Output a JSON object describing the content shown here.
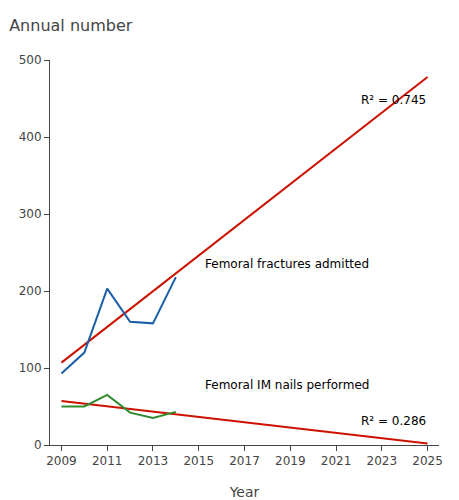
{
  "chart_data": {
    "type": "line",
    "title": "Annual number",
    "x_label": "Year",
    "xlim": [
      2008.5,
      2025.5
    ],
    "ylim": [
      0,
      500
    ],
    "xticks": [
      2009,
      2011,
      2013,
      2015,
      2017,
      2019,
      2021,
      2023,
      2025
    ],
    "yticks": [
      0,
      100,
      200,
      300,
      400,
      500
    ],
    "grid": false,
    "series": [
      {
        "x": [
          2009,
          2025
        ],
        "values": [
          107,
          478
        ],
        "color": "#cc1100"
      },
      {
        "x": [
          2009,
          2025
        ],
        "values": [
          57,
          2
        ],
        "color": "#cc1100"
      },
      {
        "x": [
          2009,
          2010,
          2011,
          2012,
          2013,
          2014
        ],
        "values": [
          93,
          120,
          203,
          160,
          158,
          218
        ],
        "color": "#1a5fa8"
      },
      {
        "x": [
          2009,
          2010,
          2011,
          2012,
          2013,
          2014
        ],
        "values": [
          50,
          50,
          65,
          42,
          35,
          43
        ],
        "color": "#2e8b2e"
      }
    ],
    "annotations": [
      {
        "text": "R² = 0.745",
        "x": 2025.0,
        "y": 460
      },
      {
        "text": "R² = 0.286",
        "x": 2025.0,
        "y": 20
      },
      {
        "text": "Femoral fractures admitted",
        "x": 2015.2,
        "y": 235
      },
      {
        "text": "Femoral IM nails performed",
        "x": 2015.2,
        "y": 78
      }
    ]
  }
}
